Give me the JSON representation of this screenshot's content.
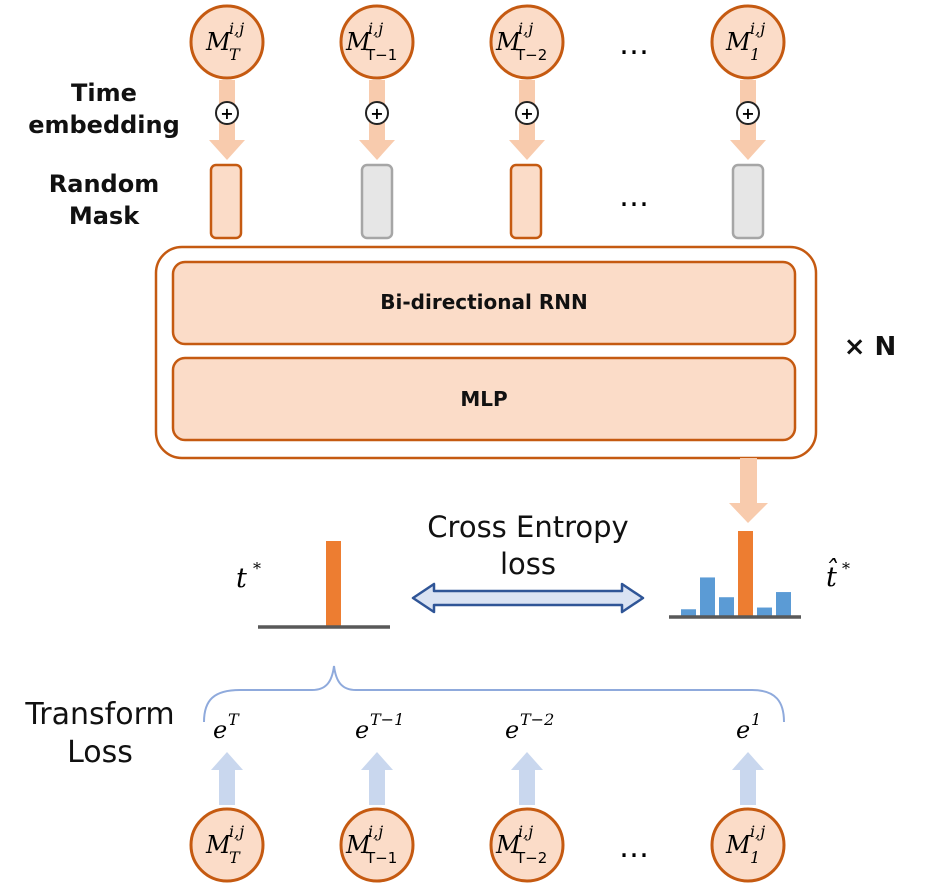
{
  "top_tokens": [
    {
      "base": "M",
      "sup": "i,j",
      "sub": "T"
    },
    {
      "base": "M",
      "sup": "i,j",
      "sub": "T−1"
    },
    {
      "base": "M",
      "sup": "i,j",
      "sub": "T−2"
    },
    {
      "base": "M",
      "sup": "i,j",
      "sub": "1"
    }
  ],
  "bottom_tokens": [
    {
      "base": "M",
      "sup": "i,j",
      "sub": "T"
    },
    {
      "base": "M",
      "sup": "i,j",
      "sub": "T−1"
    },
    {
      "base": "M",
      "sup": "i,j",
      "sub": "T−2"
    },
    {
      "base": "M",
      "sup": "i,j",
      "sub": "1"
    }
  ],
  "ellipsis": "…",
  "labels": {
    "time_embedding_line1": "Time",
    "time_embedding_line2": "embedding",
    "random_mask_line1": "Random",
    "random_mask_line2": "Mask",
    "rnn": "Bi-directional RNN",
    "mlp": "MLP",
    "repeat": "× N",
    "cross_entropy_line1": "Cross Entropy",
    "cross_entropy_line2": "loss",
    "transform_loss_line1": "Transform",
    "transform_loss_line2": "Loss",
    "target_symbol": "t",
    "target_star": "*",
    "pred_symbol": "t̂",
    "pred_star": "*",
    "plus": "+"
  },
  "embeddings": [
    {
      "base": "e",
      "sup": "T"
    },
    {
      "base": "e",
      "sup": "T−1"
    },
    {
      "base": "e",
      "sup": "T−2"
    },
    {
      "base": "e",
      "sup": "1"
    }
  ],
  "mask_states": [
    "visible",
    "masked",
    "visible",
    "masked"
  ],
  "target_distribution": [
    1
  ],
  "predicted_distribution": [
    0.09,
    0.46,
    0.23,
    1.0,
    0.11,
    0.29
  ],
  "predicted_peak_index": 3,
  "colors": {
    "orange_fill": "#fbdcc8",
    "orange_stroke": "#c55a11",
    "orange_bar": "#ed7d31",
    "blue_bar": "#5b9bd5",
    "arrow_peach": "#f8cbad",
    "arrow_blue": "#c9d7ee",
    "mask_gray": "#e6e6e6",
    "gray_stroke": "#a6a6a6",
    "double_arrow_fill": "#dae3f3",
    "double_arrow_stroke": "#2f5597",
    "brace": "#8faadc",
    "axis": "#595959"
  }
}
